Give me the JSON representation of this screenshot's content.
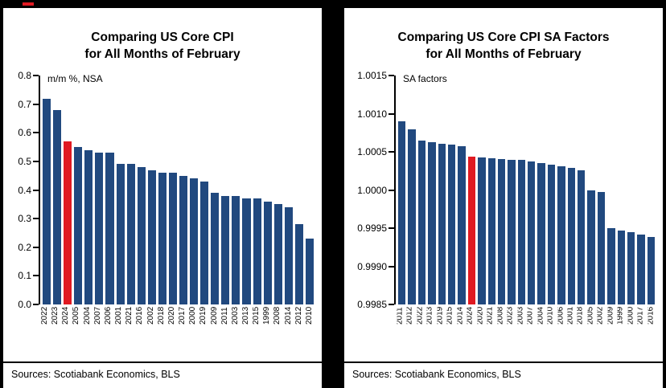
{
  "chart_data": [
    {
      "type": "bar",
      "title": "Comparing US Core CPI for All Months of February",
      "title_lines": [
        "Comparing US Core CPI",
        "for All Months of February"
      ],
      "ylabel": "m/m %, NSA",
      "xlabel": "",
      "ylim": [
        0.0,
        0.8
      ],
      "grid": false,
      "legend": false,
      "yticks": [
        {
          "value": 0.8,
          "label": "0.8"
        },
        {
          "value": 0.7,
          "label": "0.7"
        },
        {
          "value": 0.6,
          "label": "0.6"
        },
        {
          "value": 0.5,
          "label": "0.5"
        },
        {
          "value": 0.4,
          "label": "0.4"
        },
        {
          "value": 0.3,
          "label": "0.3"
        },
        {
          "value": 0.2,
          "label": "0.2"
        },
        {
          "value": 0.1,
          "label": "0.1"
        },
        {
          "value": 0.0,
          "label": "0.0"
        }
      ],
      "categories": [
        "2022",
        "2023",
        "2024",
        "2005",
        "2004",
        "2007",
        "2006",
        "2001",
        "2021",
        "2016",
        "2002",
        "2018",
        "2020",
        "2017",
        "2000",
        "2019",
        "2009",
        "2011",
        "2003",
        "2013",
        "2015",
        "1999",
        "2008",
        "2014",
        "2012",
        "2010"
      ],
      "values": [
        0.72,
        0.68,
        0.57,
        0.55,
        0.54,
        0.53,
        0.53,
        0.49,
        0.49,
        0.48,
        0.47,
        0.46,
        0.46,
        0.45,
        0.44,
        0.43,
        0.39,
        0.38,
        0.38,
        0.37,
        0.37,
        0.36,
        0.35,
        0.34,
        0.28,
        0.23
      ],
      "highlight_category": "2024",
      "bar_color": "#21497f",
      "highlight_color": "#e01a22",
      "source": "Sources: Scotiabank Economics, BLS"
    },
    {
      "type": "bar",
      "title": "Comparing US Core CPI SA Factors for All Months of February",
      "title_lines": [
        "Comparing US Core CPI SA Factors",
        "for All Months of February"
      ],
      "ylabel": "SA factors",
      "xlabel": "",
      "ylim": [
        0.9985,
        1.0015
      ],
      "grid": false,
      "legend": false,
      "yticks": [
        {
          "value": 1.0015,
          "label": "1.0015"
        },
        {
          "value": 1.001,
          "label": "1.0010"
        },
        {
          "value": 1.0005,
          "label": "1.0005"
        },
        {
          "value": 1.0,
          "label": "1.0000"
        },
        {
          "value": 0.9995,
          "label": "0.9995"
        },
        {
          "value": 0.999,
          "label": "0.9990"
        },
        {
          "value": 0.9985,
          "label": "0.9985"
        }
      ],
      "categories": [
        "2011",
        "2012",
        "2022",
        "2013",
        "2019",
        "2015",
        "2014",
        "2024",
        "2020",
        "2021",
        "2008",
        "2023",
        "2003",
        "2007",
        "2004",
        "2010",
        "2006",
        "2001",
        "2018",
        "2005",
        "2002",
        "2009",
        "1999",
        "2000",
        "2017",
        "2016"
      ],
      "values": [
        1.0009,
        1.0008,
        1.00065,
        1.00063,
        1.00061,
        1.00059,
        1.00057,
        1.00044,
        1.00043,
        1.00042,
        1.00041,
        1.0004,
        1.00039,
        1.00037,
        1.00035,
        1.00033,
        1.00031,
        1.00029,
        1.00026,
        1.0,
        0.99997,
        0.9995,
        0.99947,
        0.99945,
        0.99942,
        0.99938
      ],
      "highlight_category": "2024",
      "bar_color": "#21497f",
      "highlight_color": "#e01a22",
      "source": "Sources: Scotiabank Economics, BLS"
    }
  ]
}
